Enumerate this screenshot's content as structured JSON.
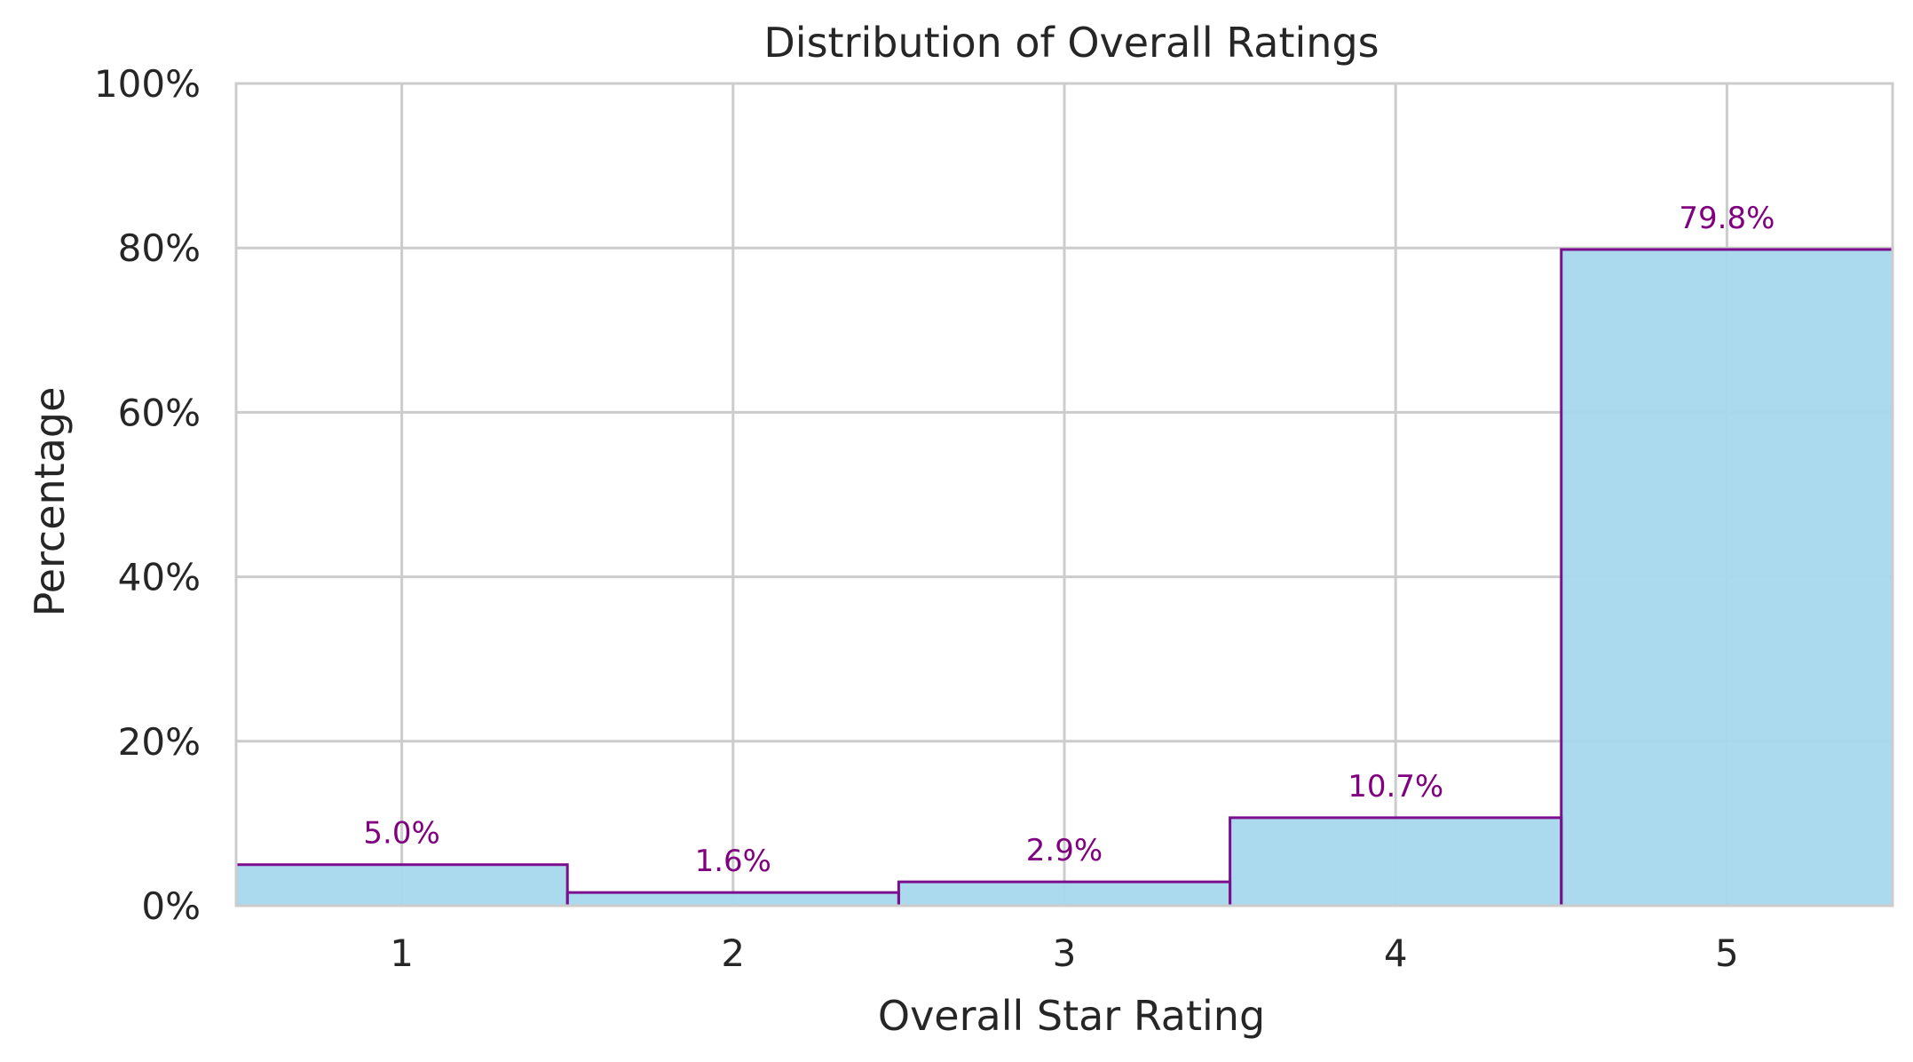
{
  "chart_data": {
    "type": "bar",
    "title": "Distribution of Overall Ratings",
    "xlabel": "Overall Star Rating",
    "ylabel": "Percentage",
    "categories": [
      "1",
      "2",
      "3",
      "4",
      "5"
    ],
    "values": [
      5.0,
      1.6,
      2.9,
      10.7,
      79.8
    ],
    "data_labels": [
      "5.0%",
      "1.6%",
      "2.9%",
      "10.7%",
      "79.8%"
    ],
    "ylim": [
      0,
      100
    ],
    "yticks": [
      0,
      20,
      40,
      60,
      80,
      100
    ],
    "ytick_labels": [
      "0%",
      "20%",
      "40%",
      "60%",
      "80%",
      "100%"
    ],
    "grid": true,
    "colors": {
      "bar_fill": "#a6d8ee",
      "bar_edge": "#7b0e8c",
      "data_label": "#800080",
      "grid": "#cccccc",
      "text": "#262626"
    }
  }
}
